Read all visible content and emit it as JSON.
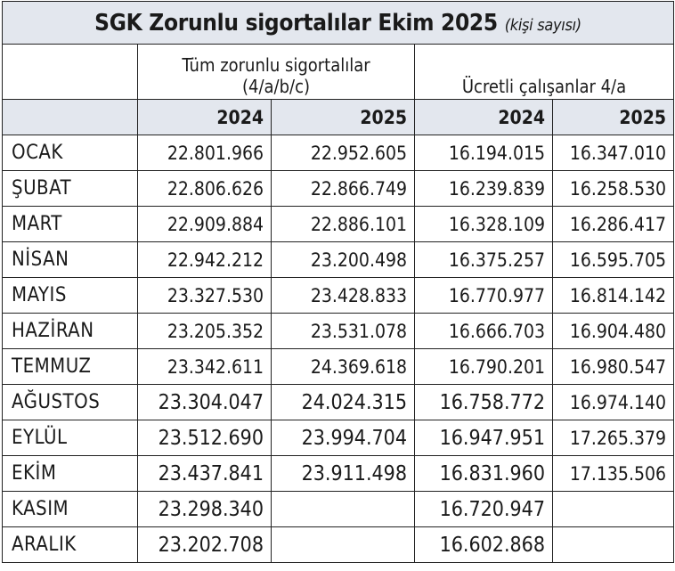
{
  "title": "SGK Zorunlu sigortalılar Ekim 2025",
  "subtitle": "(kişi sayısı)",
  "group_headers": {
    "all": "Tüm zorunlu sigortalılar (4/a/b/c)",
    "all_line1": "Tüm zorunlu sigortalılar",
    "all_line2": "(4/a/b/c)",
    "paid": "Ücretli çalışanlar 4/a"
  },
  "years": [
    "2024",
    "2025",
    "2024",
    "2025"
  ],
  "rows": [
    {
      "month": "OCAK",
      "v": [
        "22.801.966",
        "22.952.605",
        "16.194.015",
        "16.347.010"
      ]
    },
    {
      "month": "ŞUBAT",
      "v": [
        "22.806.626",
        "22.866.749",
        "16.239.839",
        "16.258.530"
      ]
    },
    {
      "month": "MART",
      "v": [
        "22.909.884",
        "22.886.101",
        "16.328.109",
        "16.286.417"
      ]
    },
    {
      "month": "NİSAN",
      "v": [
        "22.942.212",
        "23.200.498",
        "16.375.257",
        "16.595.705"
      ]
    },
    {
      "month": "MAYIS",
      "v": [
        "23.327.530",
        "23.428.833",
        "16.770.977",
        "16.814.142"
      ]
    },
    {
      "month": "HAZİRAN",
      "v": [
        "23.205.352",
        "23.531.078",
        "16.666.703",
        "16.904.480"
      ]
    },
    {
      "month": "TEMMUZ",
      "v": [
        "23.342.611",
        "24.369.618",
        "16.790.201",
        "16.980.547"
      ]
    },
    {
      "month": "AĞUSTOS",
      "v": [
        "23.304.047",
        "24.024.315",
        "16.758.772",
        "16.974.140"
      ]
    },
    {
      "month": "EYLÜL",
      "v": [
        "23.512.690",
        "23.994.704",
        "16.947.951",
        "17.265.379"
      ]
    },
    {
      "month": "EKİM",
      "v": [
        "23.437.841",
        "23.911.498",
        "16.831.960",
        "17.135.506"
      ]
    },
    {
      "month": "KASIM",
      "v": [
        "23.298.340",
        "",
        "16.720.947",
        ""
      ]
    },
    {
      "month": "ARALIK",
      "v": [
        "23.202.708",
        "",
        "16.602.868",
        ""
      ]
    }
  ]
}
